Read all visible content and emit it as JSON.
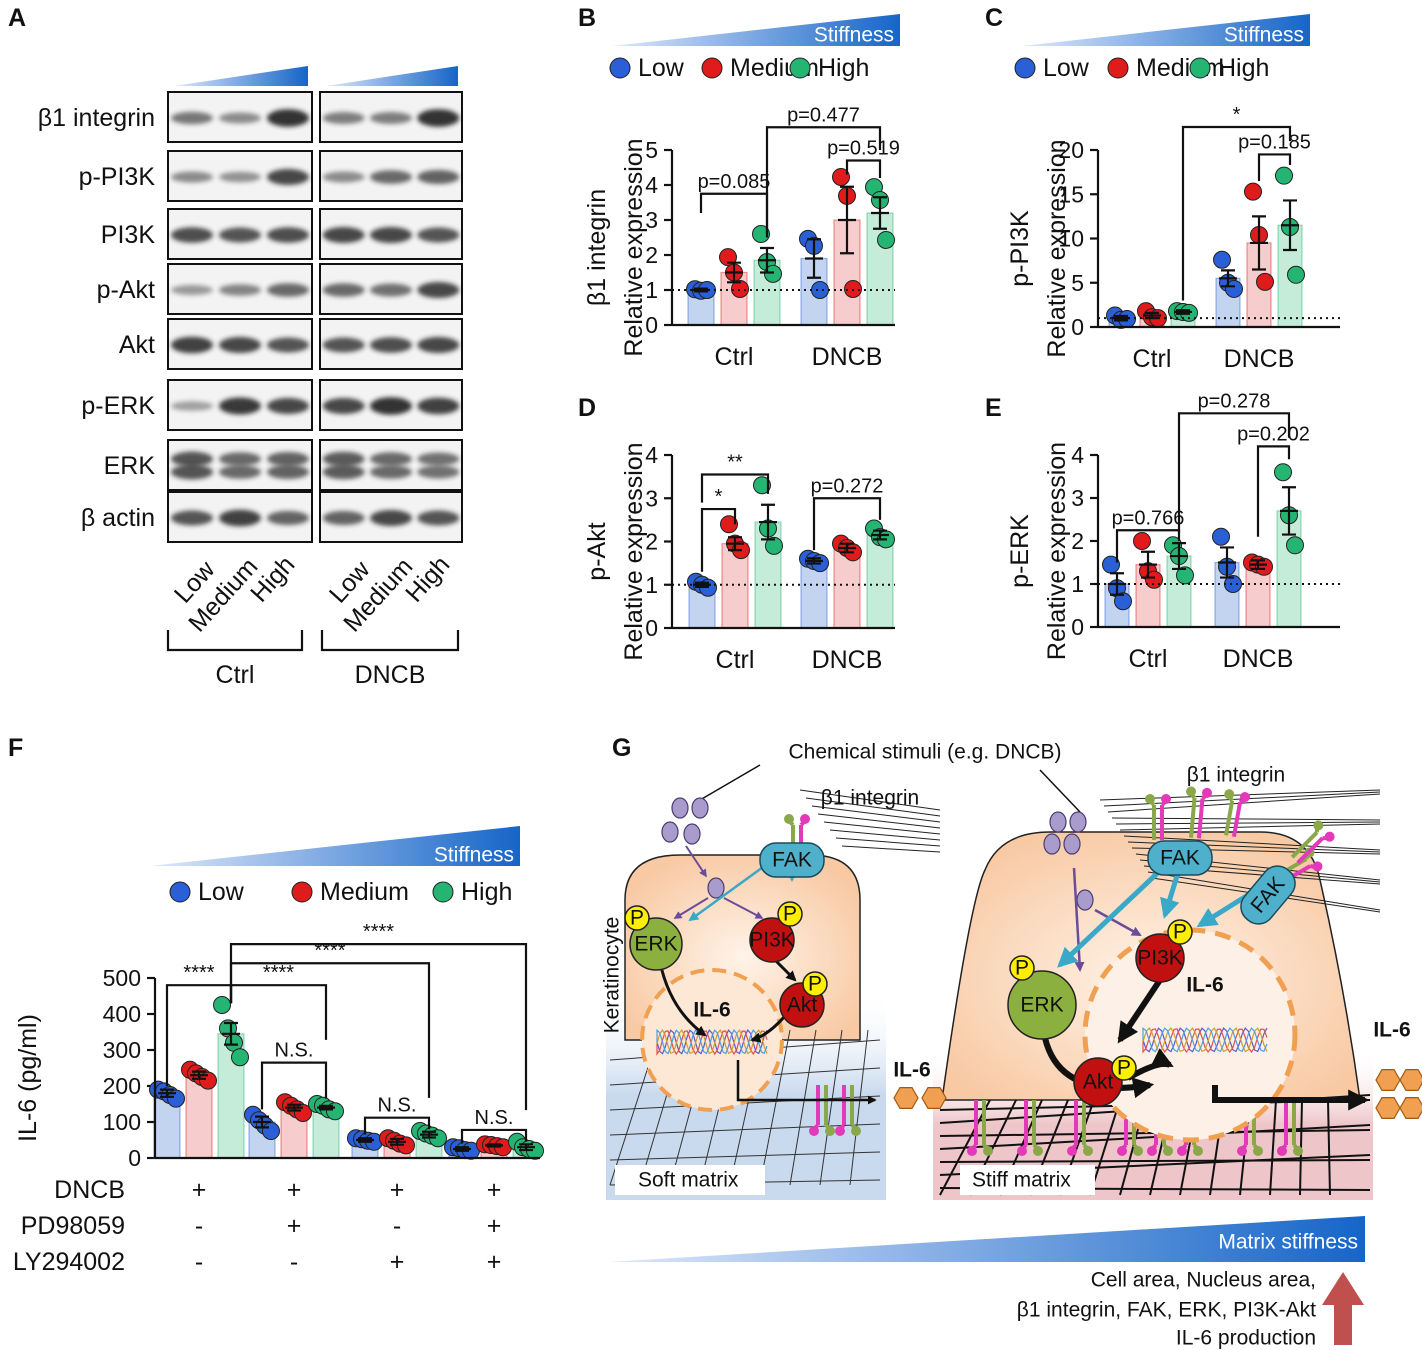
{
  "chart_data": [
    {
      "type": "bar",
      "panel_label": "B",
      "ylabel": [
        "β1 integrin",
        "Relative expression"
      ],
      "stiffness_label": "Stiffness",
      "categories": [
        "Ctrl",
        "DNCB"
      ],
      "ylim": [
        0,
        5
      ],
      "yticks": [
        0,
        1,
        2,
        3,
        4,
        5
      ],
      "reference_line": 1,
      "series": [
        {
          "name": "Low",
          "color": "#2a5fd6",
          "bar_color": "#c3d4f0",
          "values": [
            1.0,
            1.9
          ],
          "errors": [
            0.04,
            0.55
          ],
          "points": [
            [
              1.02,
              0.98,
              1.0
            ],
            [
              2.46,
              2.26,
              1.0
            ]
          ]
        },
        {
          "name": "Medium",
          "color": "#e01b1b",
          "bar_color": "#f7cccc",
          "values": [
            1.5,
            3.0
          ],
          "errors": [
            0.28,
            0.95
          ],
          "points": [
            [
              1.94,
              1.5,
              1.03
            ],
            [
              4.23,
              3.69,
              1.03
            ]
          ]
        },
        {
          "name": "High",
          "color": "#25b573",
          "bar_color": "#c4ecd9",
          "values": [
            1.85,
            3.2
          ],
          "errors": [
            0.35,
            0.45
          ],
          "points": [
            [
              2.6,
              1.8,
              1.46
            ],
            [
              3.94,
              3.57,
              2.43
            ]
          ]
        }
      ],
      "annotations": [
        "p=0.085",
        "p=0.519",
        "p=0.477"
      ]
    },
    {
      "type": "bar",
      "panel_label": "C",
      "ylabel": [
        "p-PI3K",
        "Relative expression"
      ],
      "stiffness_label": "Stiffness",
      "categories": [
        "Ctrl",
        "DNCB"
      ],
      "ylim": [
        0,
        20
      ],
      "yticks": [
        0,
        5,
        10,
        15,
        20
      ],
      "reference_line": 1,
      "series": [
        {
          "name": "Low",
          "color": "#2a5fd6",
          "bar_color": "#c3d4f0",
          "values": [
            1.0,
            5.5
          ],
          "errors": [
            0.25,
            0.9
          ],
          "points": [
            [
              1.3,
              0.8,
              0.9
            ],
            [
              7.6,
              5.0,
              4.3
            ]
          ]
        },
        {
          "name": "Medium",
          "color": "#e01b1b",
          "bar_color": "#f7cccc",
          "values": [
            1.3,
            9.5
          ],
          "errors": [
            0.3,
            3.0
          ],
          "points": [
            [
              1.8,
              1.1,
              1.0
            ],
            [
              15.3,
              10.4,
              5.1
            ]
          ]
        },
        {
          "name": "High",
          "color": "#25b573",
          "bar_color": "#c4ecd9",
          "values": [
            1.7,
            11.5
          ],
          "errors": [
            0.2,
            2.8
          ],
          "points": [
            [
              1.8,
              1.7,
              1.6
            ],
            [
              17.1,
              11.3,
              5.9
            ]
          ]
        }
      ],
      "annotations": [
        "*",
        "p=0.185"
      ]
    },
    {
      "type": "bar",
      "panel_label": "D",
      "ylabel": [
        "p-Akt",
        "Relative expression"
      ],
      "categories": [
        "Ctrl",
        "DNCB"
      ],
      "ylim": [
        0,
        4
      ],
      "yticks": [
        0,
        1,
        2,
        3,
        4
      ],
      "reference_line": 1,
      "series": [
        {
          "name": "Low",
          "color": "#2a5fd6",
          "bar_color": "#c3d4f0",
          "values": [
            1.0,
            1.55
          ],
          "errors": [
            0.05,
            0.06
          ],
          "points": [
            [
              1.07,
              1.0,
              0.93
            ],
            [
              1.6,
              1.55,
              1.5
            ]
          ]
        },
        {
          "name": "Medium",
          "color": "#e01b1b",
          "bar_color": "#f7cccc",
          "values": [
            1.95,
            1.85
          ],
          "errors": [
            0.15,
            0.1
          ],
          "points": [
            [
              2.4,
              1.95,
              1.8
            ],
            [
              1.95,
              1.85,
              1.75
            ]
          ]
        },
        {
          "name": "High",
          "color": "#25b573",
          "bar_color": "#c4ecd9",
          "values": [
            2.45,
            2.15
          ],
          "errors": [
            0.4,
            0.1
          ],
          "points": [
            [
              3.3,
              2.3,
              1.9
            ],
            [
              2.3,
              2.1,
              2.05
            ]
          ]
        }
      ],
      "annotations": [
        "*",
        "**",
        "p=0.272"
      ]
    },
    {
      "type": "bar",
      "panel_label": "E",
      "ylabel": [
        "p-ERK",
        "Relative expression"
      ],
      "categories": [
        "Ctrl",
        "DNCB"
      ],
      "ylim": [
        0,
        4
      ],
      "yticks": [
        0,
        1,
        2,
        3,
        4
      ],
      "reference_line": 1,
      "series": [
        {
          "name": "Low",
          "color": "#2a5fd6",
          "bar_color": "#c3d4f0",
          "values": [
            1.0,
            1.5
          ],
          "errors": [
            0.25,
            0.35
          ],
          "points": [
            [
              1.45,
              0.9,
              0.6
            ],
            [
              2.1,
              1.4,
              1.0
            ]
          ]
        },
        {
          "name": "Medium",
          "color": "#e01b1b",
          "bar_color": "#f7cccc",
          "values": [
            1.45,
            1.45
          ],
          "errors": [
            0.3,
            0.1
          ],
          "points": [
            [
              2.0,
              1.3,
              1.1
            ],
            [
              1.5,
              1.45,
              1.4
            ]
          ]
        },
        {
          "name": "High",
          "color": "#25b573",
          "bar_color": "#c4ecd9",
          "values": [
            1.65,
            2.7
          ],
          "errors": [
            0.3,
            0.55
          ],
          "points": [
            [
              1.9,
              1.65,
              1.2
            ],
            [
              3.6,
              2.6,
              1.9
            ]
          ]
        }
      ],
      "annotations": [
        "p=0.766",
        "p=0.202",
        "p=0.278"
      ]
    },
    {
      "type": "bar",
      "panel_label": "F",
      "ylabel": [
        "IL-6 (pg/ml)"
      ],
      "stiffness_label": "Stiffness",
      "categories": [
        null,
        null,
        null,
        null
      ],
      "ylim": [
        0,
        500
      ],
      "yticks": [
        0,
        100,
        200,
        300,
        400,
        500
      ],
      "series": [
        {
          "name": "Low",
          "color": "#2a5fd6",
          "bar_color": "#c3d4f0",
          "values": [
            180,
            100,
            50,
            25
          ],
          "errors": [
            10,
            15,
            5,
            5
          ],
          "points": [
            [
              190,
              185,
              175,
              165
            ],
            [
              120,
              105,
              90,
              75
            ],
            [
              55,
              52,
              48,
              45
            ],
            [
              30,
              27,
              22,
              20
            ]
          ]
        },
        {
          "name": "Medium",
          "color": "#e01b1b",
          "bar_color": "#f7cccc",
          "values": [
            230,
            140,
            45,
            35
          ],
          "errors": [
            10,
            8,
            8,
            3
          ],
          "points": [
            [
              245,
              235,
              225,
              215
            ],
            [
              155,
              145,
              135,
              125
            ],
            [
              55,
              48,
              40,
              35
            ],
            [
              38,
              36,
              33,
              30
            ]
          ]
        },
        {
          "name": "High",
          "color": "#25b573",
          "bar_color": "#c4ecd9",
          "values": [
            345,
            140,
            65,
            30
          ],
          "errors": [
            30,
            5,
            8,
            8
          ],
          "points": [
            [
              425,
              360,
              320,
              280
            ],
            [
              150,
              145,
              135,
              130
            ],
            [
              75,
              68,
              62,
              55
            ],
            [
              45,
              30,
              25,
              20
            ]
          ]
        }
      ],
      "annotations": [
        "****",
        "****",
        "****",
        "****",
        "N.S.",
        "N.S.",
        "N.S."
      ],
      "conditions": [
        {
          "name": "DNCB",
          "values": [
            "+",
            "+",
            "+",
            "+"
          ]
        },
        {
          "name": "PD98059",
          "values": [
            "-",
            "+",
            "-",
            "+"
          ]
        },
        {
          "name": "LY294002",
          "values": [
            "-",
            "-",
            "+",
            "+"
          ]
        }
      ]
    }
  ],
  "blot": {
    "panel_label": "A",
    "proteins": [
      "β1 integrin",
      "p-PI3K",
      "PI3K",
      "p-Akt",
      "Akt",
      "p-ERK",
      "ERK",
      "β actin"
    ],
    "groups": [
      {
        "name": "Ctrl",
        "lanes": [
          "Low",
          "Medium",
          "High"
        ]
      },
      {
        "name": "DNCB",
        "lanes": [
          "Low",
          "Medium",
          "High"
        ]
      }
    ]
  },
  "diagram": {
    "panel_label": "G",
    "stimulus": "Chemical stimuli (e.g. DNCB)",
    "integrin": "β1 integrin",
    "fak": "FAK",
    "erk": "ERK",
    "pi3k": "PI3K",
    "akt": "Akt",
    "phospho": "P",
    "il6": "IL-6",
    "cell": "Keratinocyte",
    "soft": "Soft matrix",
    "stiff": "Stiff matrix",
    "stiffness_bar": "Matrix stiffness",
    "outcome": [
      "Cell area, Nucleus area,",
      "β1 integrin, FAK, ERK, PI3K-Akt",
      "IL-6 production"
    ]
  }
}
